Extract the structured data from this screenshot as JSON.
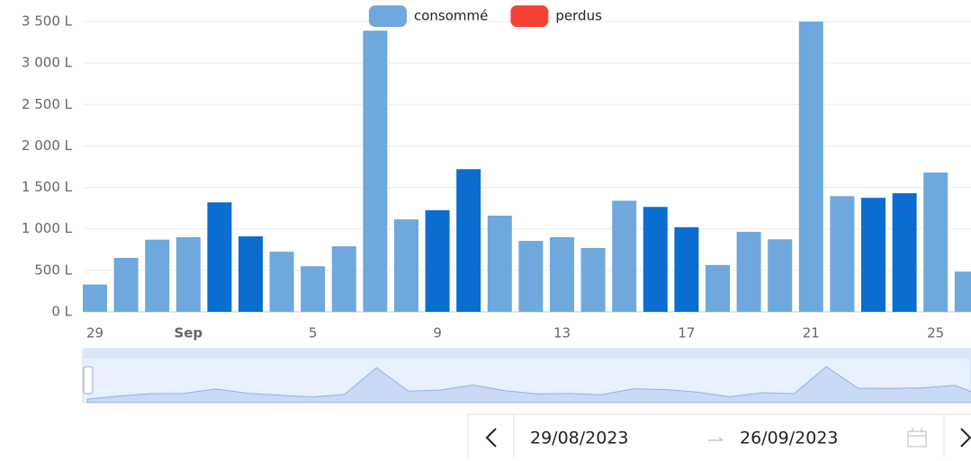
{
  "chart_data": {
    "type": "bar",
    "categories": [
      "29",
      null,
      null,
      "Sep",
      null,
      null,
      null,
      "5",
      null,
      null,
      null,
      "9",
      null,
      null,
      null,
      "13",
      null,
      null,
      null,
      "17",
      null,
      null,
      null,
      "21",
      null,
      null,
      null,
      "25",
      null
    ],
    "series": [
      {
        "name": "consommé",
        "color": "#6fa8dc",
        "colors": [
          "#6fa8dc",
          "#6fa8dc",
          "#6fa8dc",
          "#6fa8dc",
          "#0a6ed1",
          "#0a6ed1",
          "#6fa8dc",
          "#6fa8dc",
          "#6fa8dc",
          "#6fa8dc",
          "#6fa8dc",
          "#0a6ed1",
          "#0a6ed1",
          "#6fa8dc",
          "#6fa8dc",
          "#6fa8dc",
          "#6fa8dc",
          "#6fa8dc",
          "#0a6ed1",
          "#0a6ed1",
          "#6fa8dc",
          "#6fa8dc",
          "#6fa8dc",
          "#6fa8dc",
          "#6fa8dc",
          "#0a6ed1",
          "#0a6ed1",
          "#6fa8dc",
          "#6fa8dc"
        ],
        "values": [
          330,
          650,
          870,
          900,
          1320,
          910,
          725,
          550,
          790,
          3390,
          1115,
          1225,
          1720,
          1160,
          855,
          900,
          770,
          1340,
          1265,
          1020,
          565,
          965,
          875,
          3500,
          1395,
          1375,
          1430,
          1680,
          485
        ]
      },
      {
        "name": "perdus",
        "color": "#f44336",
        "values": [
          0,
          0,
          0,
          0,
          0,
          0,
          0,
          0,
          0,
          0,
          0,
          0,
          0,
          0,
          0,
          0,
          0,
          0,
          0,
          0,
          0,
          0,
          0,
          0,
          0,
          0,
          0,
          0,
          0
        ]
      }
    ],
    "ylim": [
      0,
      3500
    ],
    "yticks": [
      {
        "value": 0,
        "label": "0 L"
      },
      {
        "value": 500,
        "label": "500 L"
      },
      {
        "value": 1000,
        "label": "1 000 L"
      },
      {
        "value": 1500,
        "label": "1 500 L"
      },
      {
        "value": 2000,
        "label": "2 000 L"
      },
      {
        "value": 2500,
        "label": "2 500 L"
      },
      {
        "value": 3000,
        "label": "3 000 L"
      },
      {
        "value": 3500,
        "label": "3 500 L"
      }
    ],
    "grid": true,
    "legend": "top"
  },
  "date_picker": {
    "start": "29/08/2023",
    "end": "26/09/2023"
  }
}
